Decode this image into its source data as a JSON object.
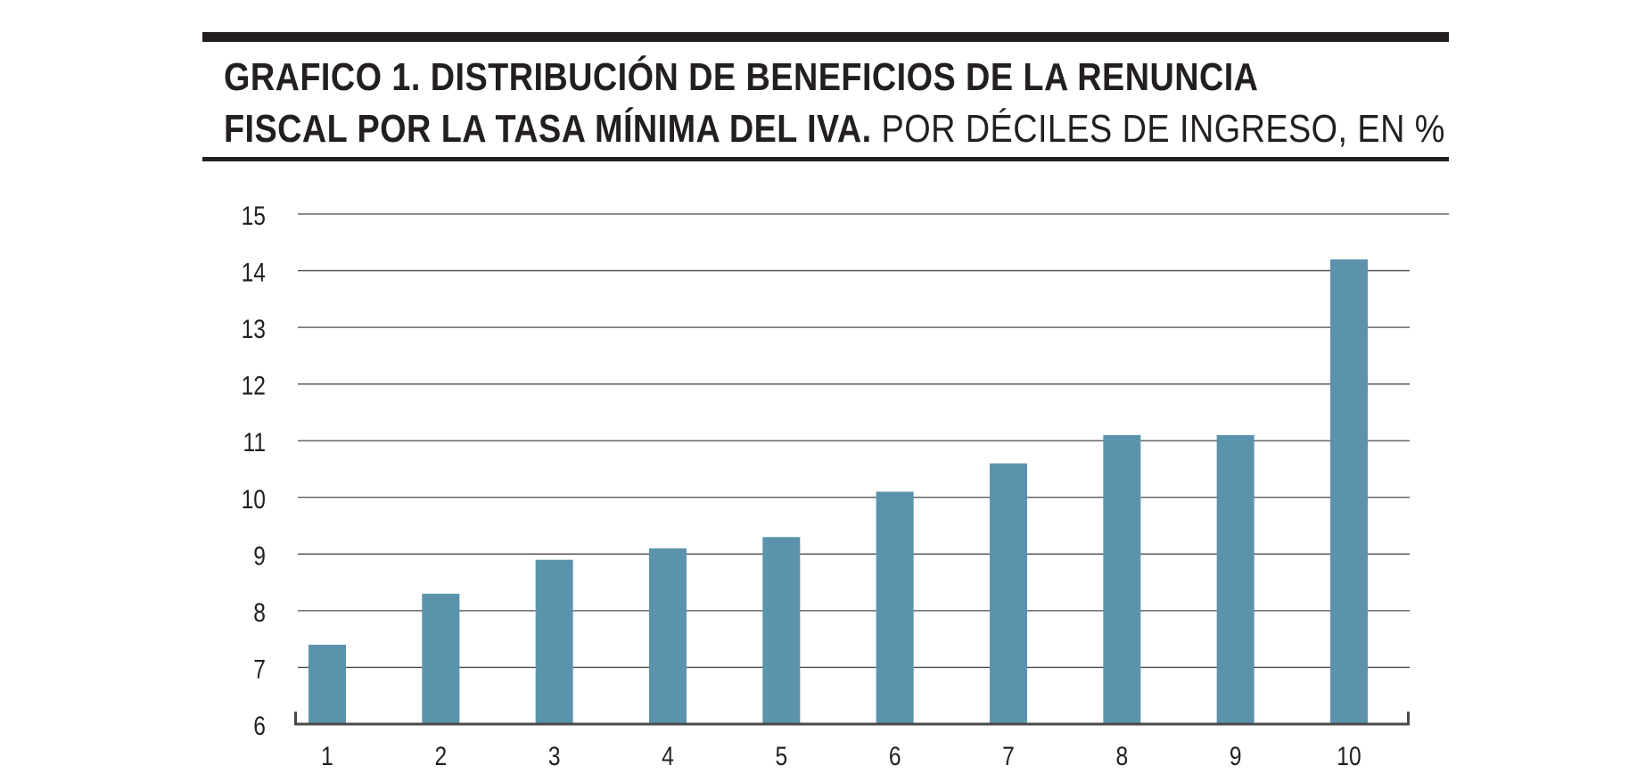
{
  "title": {
    "line1": "GRAFICO 1. DISTRIBUCIÓN DE BENEFICIOS DE LA RENUNCIA",
    "line2_bold": "FISCAL POR LA TASA MÍNIMA DEL IVA.",
    "line2_light": "POR DÉCILES DE INGRESO, EN %"
  },
  "colors": {
    "bar": "#5b93ad",
    "text": "#231f20",
    "grid": "#4a4a4a",
    "axis": "#4a4a4a"
  },
  "chart_data": {
    "type": "bar",
    "title": "GRAFICO 1. DISTRIBUCIÓN DE BENEFICIOS DE LA RENUNCIA FISCAL POR LA TASA MÍNIMA DEL IVA. POR DÉCILES DE INGRESO, EN %",
    "xlabel": "",
    "ylabel": "",
    "categories": [
      "1",
      "2",
      "3",
      "4",
      "5",
      "6",
      "7",
      "8",
      "9",
      "10"
    ],
    "values": [
      7.4,
      8.3,
      8.9,
      9.1,
      9.3,
      10.1,
      10.6,
      11.1,
      11.1,
      14.2
    ],
    "ylim": [
      6,
      15
    ],
    "yticks": [
      6,
      7,
      8,
      9,
      10,
      11,
      12,
      13,
      14,
      15
    ],
    "grid": true,
    "legend": "none"
  }
}
